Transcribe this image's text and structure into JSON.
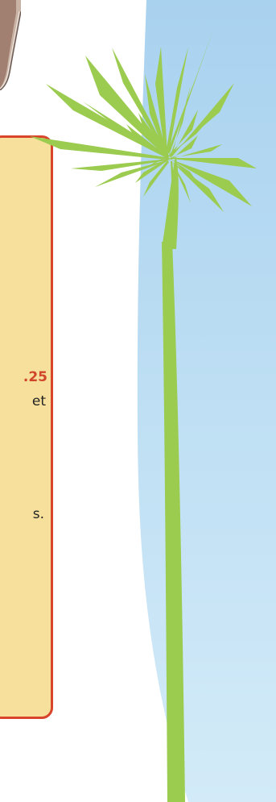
{
  "card": {
    "price_text": ".25",
    "line_2_text": "et",
    "line_3_text": "s."
  },
  "colors": {
    "card_background": "#f6e09b",
    "card_border": "#d8452b",
    "price_text": "#d1452a",
    "body_text": "#232323",
    "sky_top": "#a9d2ef",
    "sky_bottom": "#d3ebf8",
    "palm": "#9bcb4f"
  },
  "decorations": {
    "tree_icon": "palm-tree-icon",
    "photo_icon": "photo-corner-icon"
  }
}
